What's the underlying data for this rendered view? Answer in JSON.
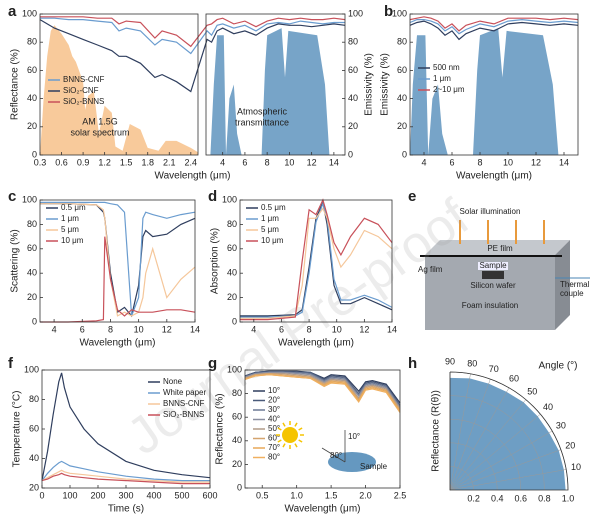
{
  "chart_data": [
    {
      "type": "line",
      "panel": "a",
      "xlabel": "Wavelength (μm)",
      "ylabel": "Reflectance (%)",
      "y2label": "Emissivity (%)",
      "xlim": [
        0.3,
        15
      ],
      "xbreak": 2.5,
      "xticks": [
        0.3,
        0.6,
        0.9,
        1.2,
        1.5,
        1.8,
        2.1,
        2.4,
        4,
        6,
        8,
        10,
        12,
        14
      ],
      "ylim": [
        0,
        100
      ],
      "yticks": [
        0,
        20,
        40,
        60,
        80,
        100
      ],
      "y2lim": [
        0,
        100
      ],
      "y2ticks": [
        0,
        20,
        40,
        60,
        80,
        100
      ],
      "legend": "center left",
      "x": [
        0.3,
        0.5,
        0.7,
        0.9,
        1.1,
        1.3,
        1.4,
        1.5,
        1.7,
        1.9,
        2.0,
        2.2,
        2.4,
        2.6,
        3.0,
        3.5,
        4.0,
        5.0,
        6.0,
        7.0,
        8.0,
        9.0,
        10,
        11,
        12,
        13,
        14,
        15
      ],
      "series": [
        {
          "name": "BNNS-CNF",
          "color": "#6a9ccf",
          "values": [
            97,
            97,
            96,
            96,
            95,
            94,
            88,
            90,
            88,
            78,
            82,
            80,
            72,
            88,
            85,
            92,
            93,
            90,
            92,
            88,
            93,
            94,
            93,
            95,
            94,
            93,
            94,
            94
          ]
        },
        {
          "name": "SiO₂-CNF",
          "color": "#2f3e5e",
          "values": [
            96,
            90,
            86,
            82,
            78,
            74,
            70,
            70,
            65,
            55,
            57,
            52,
            45,
            82,
            80,
            88,
            90,
            86,
            88,
            85,
            90,
            93,
            92,
            92,
            91,
            92,
            93,
            92
          ]
        },
        {
          "name": "SiO₂-BNNS",
          "color": "#c8515a",
          "values": [
            98,
            98,
            98,
            98,
            97,
            97,
            93,
            95,
            94,
            83,
            88,
            85,
            77,
            92,
            93,
            96,
            97,
            93,
            95,
            91,
            95,
            97,
            96,
            97,
            96,
            96,
            97,
            96
          ]
        }
      ],
      "areas": [
        {
          "label": [
            "AM 1.5G",
            "solar spectrum"
          ],
          "color": "#f5b87a",
          "x": [
            0.3,
            0.35,
            0.4,
            0.45,
            0.5,
            0.6,
            0.7,
            0.75,
            0.8,
            0.9,
            0.93,
            0.97,
            1.05,
            1.12,
            1.2,
            1.3,
            1.35,
            1.45,
            1.55,
            1.7,
            1.8,
            1.95,
            2.05,
            2.2,
            2.4,
            2.5
          ],
          "values": [
            0,
            40,
            70,
            88,
            92,
            86,
            78,
            70,
            66,
            52,
            32,
            42,
            45,
            15,
            35,
            30,
            6,
            3,
            22,
            18,
            5,
            3,
            10,
            10,
            5,
            2
          ]
        },
        {
          "label": [
            "Atmospheric",
            "transmittance"
          ],
          "color": "#4a86b5",
          "x": [
            2.5,
            2.9,
            3.2,
            3.5,
            4.1,
            4.3,
            4.6,
            5.0,
            5.3,
            5.7,
            7.5,
            7.8,
            8.0,
            9.3,
            9.6,
            9.9,
            12.5,
            13.2,
            13.6,
            15
          ],
          "values": [
            0,
            0,
            50,
            85,
            85,
            0,
            40,
            50,
            15,
            0,
            0,
            60,
            85,
            90,
            55,
            88,
            85,
            50,
            0,
            0
          ]
        }
      ]
    },
    {
      "type": "line",
      "panel": "b",
      "xlabel": "Wavelength (μm)",
      "ylabel": "Emissivity (%)",
      "xlim": [
        3,
        15
      ],
      "xticks": [
        4,
        6,
        8,
        10,
        12,
        14
      ],
      "ylim": [
        0,
        100
      ],
      "yticks": [
        0,
        20,
        40,
        60,
        80,
        100
      ],
      "legend": "center left",
      "x": [
        3,
        3.5,
        4,
        4.5,
        5,
        5.5,
        6,
        6.5,
        7,
        8,
        9,
        10,
        11,
        12,
        13,
        14,
        15
      ],
      "series": [
        {
          "name": "500 nm",
          "color": "#2f3e5e",
          "values": [
            92,
            94,
            95,
            93,
            90,
            85,
            88,
            82,
            86,
            90,
            88,
            93,
            94,
            93,
            92,
            93,
            92
          ]
        },
        {
          "name": "1 μm",
          "color": "#6a9ccf",
          "values": [
            94,
            96,
            96,
            95,
            93,
            88,
            91,
            86,
            89,
            93,
            91,
            95,
            96,
            95,
            94,
            95,
            94
          ]
        },
        {
          "name": "2~10 μm",
          "color": "#c8515a",
          "values": [
            96,
            97,
            98,
            97,
            95,
            90,
            93,
            88,
            92,
            95,
            93,
            97,
            97,
            97,
            96,
            97,
            96
          ]
        }
      ],
      "areas": [
        {
          "color": "#4a86b5",
          "x": [
            3,
            3.2,
            3.5,
            4.1,
            4.3,
            4.6,
            5.0,
            5.3,
            5.7,
            7.5,
            7.8,
            8.0,
            9.3,
            9.6,
            9.9,
            12.5,
            13.2,
            13.6,
            15
          ],
          "values": [
            0,
            50,
            85,
            85,
            0,
            40,
            50,
            15,
            0,
            0,
            60,
            85,
            90,
            55,
            88,
            85,
            50,
            0,
            0
          ]
        }
      ]
    },
    {
      "type": "line",
      "panel": "c",
      "xlabel": "Wavelength (μm)",
      "ylabel": "Scattering (%)",
      "xlim": [
        3,
        14
      ],
      "xticks": [
        4,
        6,
        8,
        10,
        12,
        14
      ],
      "ylim": [
        0,
        100
      ],
      "yticks": [
        0,
        20,
        40,
        60,
        80,
        100
      ],
      "legend": "upper left",
      "x": [
        3,
        5,
        7,
        7.5,
        7.6,
        8,
        8.5,
        9,
        9.5,
        10,
        10.3,
        10.5,
        11,
        12,
        13,
        14
      ],
      "series": [
        {
          "name": "0.5 μm",
          "color": "#2f3e5e",
          "values": [
            97,
            97,
            96,
            90,
            85,
            40,
            8,
            12,
            5,
            30,
            70,
            75,
            70,
            72,
            80,
            85
          ]
        },
        {
          "name": "1 μm",
          "color": "#6a9ccf",
          "values": [
            98,
            98,
            98,
            98,
            98,
            97,
            96,
            90,
            5,
            20,
            85,
            90,
            88,
            85,
            88,
            90
          ]
        },
        {
          "name": "5 μm",
          "color": "#f5c79b",
          "values": [
            97,
            97,
            96,
            92,
            85,
            35,
            5,
            8,
            5,
            8,
            20,
            40,
            60,
            20,
            35,
            45
          ]
        },
        {
          "name": "10 μm",
          "color": "#c8515a",
          "values": [
            0,
            0,
            1,
            2,
            70,
            35,
            10,
            5,
            10,
            8,
            8,
            8,
            8,
            10,
            10,
            8
          ]
        }
      ]
    },
    {
      "type": "line",
      "panel": "d",
      "xlabel": "Wavelength (μm)",
      "ylabel": "Absorption (%)",
      "xlim": [
        3,
        14
      ],
      "xticks": [
        4,
        6,
        8,
        10,
        12,
        14
      ],
      "ylim": [
        0,
        100
      ],
      "yticks": [
        0,
        20,
        40,
        60,
        80,
        100
      ],
      "legend": "upper left",
      "x": [
        3,
        5,
        7,
        7.5,
        8,
        8.5,
        9,
        9.3,
        9.8,
        10.3,
        11,
        12,
        13,
        14
      ],
      "series": [
        {
          "name": "0.5 μm",
          "color": "#2f3e5e",
          "values": [
            5,
            5,
            6,
            10,
            45,
            85,
            98,
            80,
            30,
            15,
            15,
            20,
            15,
            10
          ]
        },
        {
          "name": "1 μm",
          "color": "#6a9ccf",
          "values": [
            4,
            4,
            5,
            8,
            40,
            82,
            97,
            85,
            35,
            18,
            18,
            22,
            18,
            12
          ]
        },
        {
          "name": "5 μm",
          "color": "#f5c79b",
          "values": [
            3,
            3,
            5,
            30,
            85,
            85,
            93,
            85,
            60,
            45,
            55,
            75,
            70,
            60
          ]
        },
        {
          "name": "10 μm",
          "color": "#c8515a",
          "values": [
            2,
            2,
            4,
            50,
            92,
            88,
            100,
            88,
            65,
            55,
            70,
            85,
            80,
            65
          ]
        }
      ]
    },
    {
      "type": "line",
      "panel": "f",
      "xlabel": "Time (s)",
      "ylabel": "Temperature (°C)",
      "xlim": [
        0,
        600
      ],
      "xticks": [
        0,
        100,
        200,
        300,
        400,
        500,
        600
      ],
      "ylim": [
        20,
        100
      ],
      "yticks": [
        20,
        40,
        60,
        80,
        100
      ],
      "legend": "upper right",
      "x": [
        0,
        20,
        40,
        60,
        70,
        80,
        100,
        150,
        200,
        300,
        400,
        500,
        600
      ],
      "series": [
        {
          "name": "None",
          "color": "#2f3e5e",
          "values": [
            25,
            45,
            70,
            92,
            98,
            88,
            75,
            60,
            50,
            38,
            32,
            29,
            27
          ]
        },
        {
          "name": "White paper",
          "color": "#6a9ccf",
          "values": [
            25,
            30,
            34,
            37,
            38,
            37,
            35,
            33,
            31,
            28,
            26,
            25,
            25
          ]
        },
        {
          "name": "BNNS-CNF",
          "color": "#f5c79b",
          "values": [
            25,
            27,
            29,
            31,
            32,
            31,
            30,
            29,
            28,
            26,
            25,
            24,
            24
          ]
        },
        {
          "name": "SiO₂-BNNS",
          "color": "#c8515a",
          "values": [
            25,
            26,
            28,
            29,
            30,
            29,
            28,
            27,
            26,
            25,
            24,
            23,
            23
          ]
        }
      ]
    },
    {
      "type": "line",
      "panel": "g",
      "xlabel": "Wavelength (μm)",
      "ylabel": "Reflectance (%)",
      "xlim": [
        0.25,
        2.5
      ],
      "xticks": [
        0.5,
        {
          "value": 1,
          "label": "1.0"
        },
        1.5,
        {
          "value": 2,
          "label": "2.0"
        },
        2.5
      ],
      "ylim": [
        0,
        100
      ],
      "yticks": [
        0,
        20,
        40,
        60,
        80,
        100
      ],
      "legend": "center left",
      "annotations": [
        "10°",
        "80°",
        "Sample"
      ],
      "x": [
        0.25,
        0.4,
        0.6,
        0.8,
        1.0,
        1.2,
        1.4,
        1.5,
        1.7,
        1.9,
        2.0,
        2.1,
        2.3,
        2.5
      ],
      "series": [
        {
          "name": "10°",
          "color": "#2f3e5e",
          "values": [
            95,
            98,
            99,
            99,
            99,
            98,
            93,
            96,
            95,
            82,
            90,
            91,
            88,
            72
          ]
        },
        {
          "name": "20°",
          "color": "#4a5a7a",
          "values": [
            95,
            98,
            99,
            99,
            98,
            98,
            92,
            95,
            94,
            80,
            89,
            90,
            87,
            70
          ]
        },
        {
          "name": "30°",
          "color": "#6a7894",
          "values": [
            94,
            97,
            98,
            98,
            98,
            97,
            91,
            94,
            93,
            79,
            88,
            89,
            86,
            69
          ]
        },
        {
          "name": "40°",
          "color": "#8b8fa0",
          "values": [
            94,
            97,
            98,
            98,
            97,
            96,
            90,
            93,
            92,
            78,
            87,
            88,
            85,
            68
          ]
        },
        {
          "name": "50°",
          "color": "#b09a88",
          "values": [
            93,
            96,
            97,
            97,
            96,
            95,
            89,
            92,
            91,
            76,
            86,
            87,
            84,
            67
          ]
        },
        {
          "name": "60°",
          "color": "#d4a46e",
          "values": [
            93,
            96,
            97,
            96,
            95,
            94,
            88,
            91,
            90,
            75,
            85,
            86,
            83,
            66
          ]
        },
        {
          "name": "70°",
          "color": "#e8a958",
          "values": [
            92,
            95,
            96,
            95,
            94,
            93,
            87,
            90,
            89,
            74,
            84,
            85,
            82,
            65
          ]
        },
        {
          "name": "80°",
          "color": "#f0b060",
          "values": [
            92,
            95,
            96,
            95,
            94,
            93,
            86,
            89,
            88,
            73,
            83,
            84,
            81,
            64
          ]
        }
      ]
    },
    {
      "type": "polar",
      "panel": "h",
      "rlabel": "Reflectance (R(θ))",
      "alabel": "Angle (°)",
      "color": "#4a86b5",
      "rlim": [
        0,
        1
      ],
      "rticks": [
        0.2,
        0.4,
        0.6,
        0.8,
        {
          "value": 1,
          "label": "1.0"
        }
      ],
      "aticks": [
        10,
        20,
        30,
        40,
        50,
        60,
        70,
        80,
        90
      ],
      "angles": [
        0,
        10,
        20,
        30,
        40,
        50,
        60,
        70,
        80,
        90
      ],
      "values": [
        0.98,
        0.98,
        0.98,
        0.97,
        0.97,
        0.97,
        0.96,
        0.96,
        0.96,
        0.95
      ]
    }
  ],
  "diagram": {
    "panel": "e",
    "solar": "Solar illumination",
    "pe": "PE film",
    "ag": "Ag film",
    "sample": "Sample",
    "wafer": "Silicon wafer",
    "thermal": [
      "Thermal",
      "couple"
    ],
    "foam": "Foam insulation"
  },
  "watermark": "Journal Pre-proof"
}
